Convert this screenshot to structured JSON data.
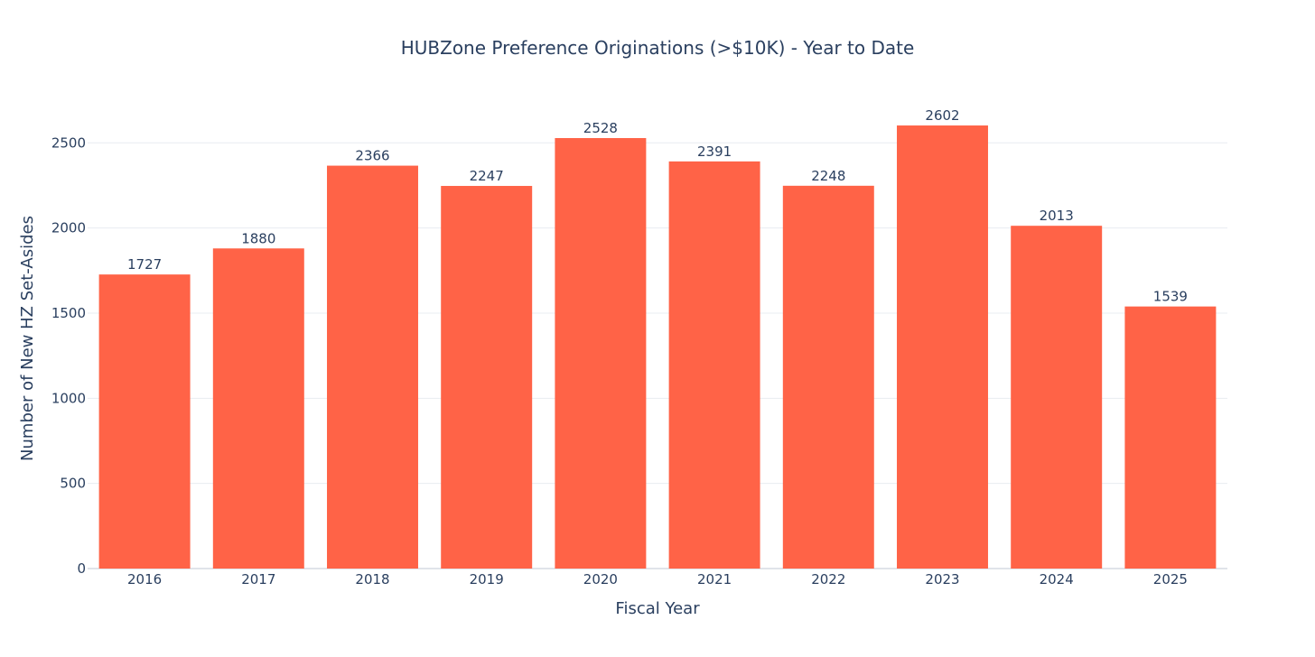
{
  "chart_data": {
    "type": "bar",
    "title": "HUBZone Preference Originations (>$10K) - Year to Date",
    "xlabel": "Fiscal Year",
    "ylabel": "Number of New HZ Set-Asides",
    "categories": [
      "2016",
      "2017",
      "2018",
      "2019",
      "2020",
      "2021",
      "2022",
      "2023",
      "2024",
      "2025"
    ],
    "values": [
      1727,
      1880,
      2366,
      2247,
      2528,
      2391,
      2248,
      2602,
      2013,
      1539
    ],
    "ylim": [
      0,
      2740
    ],
    "yticks": [
      0,
      500,
      1000,
      1500,
      2000,
      2500
    ],
    "ytick_labels": [
      "0",
      "500",
      "1000",
      "1500",
      "2000",
      "2500"
    ],
    "grid": true,
    "bar_color": "#ff6347",
    "data_labels": true
  }
}
